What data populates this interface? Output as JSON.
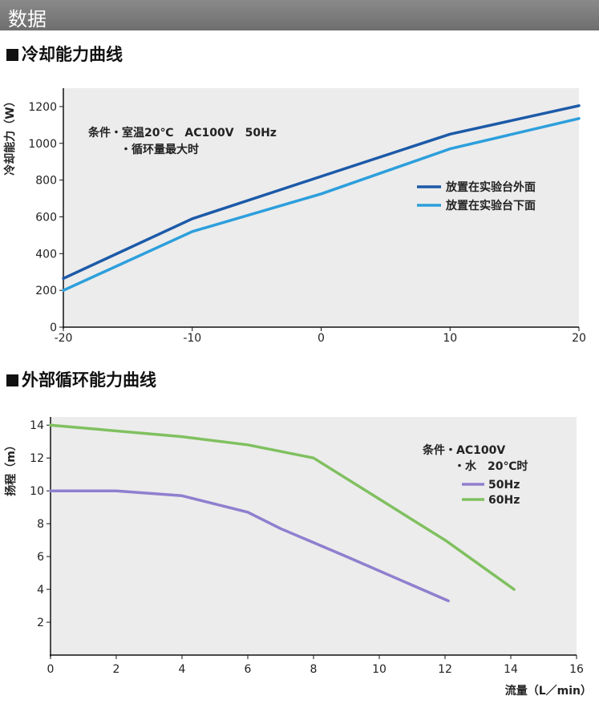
{
  "header": {
    "title": "数据"
  },
  "sections": [
    {
      "title": "冷却能力曲线"
    },
    {
      "title": "外部循环能力曲线"
    }
  ],
  "chart_data": [
    {
      "type": "line",
      "title": "冷却能力曲线",
      "ylabel": "冷却能力（W）",
      "xlabel": "",
      "xlim": [
        -20,
        20
      ],
      "ylim": [
        0,
        1300
      ],
      "grid": false,
      "x_ticks": [
        -20,
        -10,
        0,
        10,
        20
      ],
      "y_ticks": [
        0,
        200,
        400,
        600,
        800,
        1000,
        1200
      ],
      "annotations": [
        "条件・室温20℃　AC100V　50Hz",
        "・循环量最大时"
      ],
      "legend_position": "right",
      "series": [
        {
          "name": "放置在实验台外面",
          "color": "#1c5aa8",
          "x": [
            -20,
            -10,
            0,
            10,
            20
          ],
          "y": [
            265,
            590,
            820,
            1050,
            1205
          ]
        },
        {
          "name": "放置在实验台下面",
          "color": "#2d9fdc",
          "x": [
            -20,
            -10,
            0,
            10,
            20
          ],
          "y": [
            200,
            520,
            725,
            970,
            1135
          ]
        }
      ]
    },
    {
      "type": "line",
      "title": "外部循环能力曲线",
      "ylabel": "扬程（m）",
      "xlabel": "流量（L／min）",
      "xlim": [
        0,
        16
      ],
      "ylim": [
        0,
        14.5
      ],
      "grid": false,
      "x_ticks": [
        0,
        2,
        4,
        6,
        8,
        10,
        12,
        14,
        16
      ],
      "y_ticks": [
        2,
        4,
        6,
        8,
        10,
        12,
        14
      ],
      "annotations": [
        "条件・AC100V",
        "・水　20℃时"
      ],
      "legend_position": "right",
      "series": [
        {
          "name": "50Hz",
          "color": "#8f7fcf",
          "x": [
            0,
            2,
            4,
            6,
            7,
            9,
            12.1
          ],
          "y": [
            10,
            10,
            9.7,
            8.7,
            7.7,
            6,
            3.3
          ]
        },
        {
          "name": "60Hz",
          "color": "#80c060",
          "x": [
            0,
            4,
            6,
            8,
            10,
            12,
            14.1
          ],
          "y": [
            14,
            13.3,
            12.8,
            12,
            9.5,
            7,
            4
          ]
        }
      ]
    }
  ]
}
